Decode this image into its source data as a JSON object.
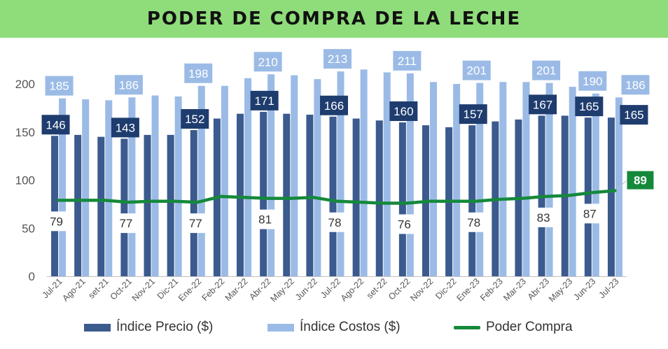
{
  "title": "PODER DE COMPRA DE LA LECHE",
  "colors": {
    "title_bg": "#8fdc7a",
    "precio": "#3b5a8e",
    "costos": "#9bbbe6",
    "poder": "#15893b",
    "precio_label_bg": "#1f3c6e",
    "costos_label_bg": "#9bbbe6"
  },
  "legend": {
    "precio": "Índice Precio ($)",
    "costos": "Índice Costos ($)",
    "poder": "Poder Compra"
  },
  "chart_data": {
    "type": "bar",
    "categories": [
      "Jul-21",
      "Ago-21",
      "set-21",
      "Oct-21",
      "Nov-21",
      "Dic-21",
      "Ene-22",
      "Feb-22",
      "Mar-22",
      "Abr-22",
      "May-22",
      "Jun-22",
      "Jul-22",
      "Ago-22",
      "set-22",
      "Oct-22",
      "Nov-22",
      "Dic-22",
      "Ene-23",
      "Feb-23",
      "Mar-23",
      "Abr-23",
      "May-23",
      "Jun-23",
      "Jul-23"
    ],
    "series": [
      {
        "name": "Índice Precio ($)",
        "type": "bar",
        "values": [
          146,
          147,
          145,
          143,
          147,
          147,
          152,
          164,
          169,
          171,
          169,
          168,
          166,
          164,
          162,
          160,
          157,
          155,
          157,
          161,
          163,
          167,
          167,
          165,
          165
        ]
      },
      {
        "name": "Índice Costos ($)",
        "type": "bar",
        "values": [
          185,
          184,
          183,
          186,
          188,
          187,
          198,
          198,
          206,
          210,
          209,
          205,
          213,
          215,
          212,
          211,
          202,
          200,
          201,
          202,
          202,
          201,
          197,
          190,
          186
        ]
      },
      {
        "name": "Poder Compra",
        "type": "line",
        "values": [
          79,
          79,
          79,
          77,
          78,
          78,
          77,
          83,
          82,
          81,
          81,
          82,
          78,
          77,
          76,
          76,
          78,
          78,
          78,
          80,
          81,
          83,
          84,
          87,
          89
        ]
      }
    ],
    "data_labels": {
      "precio": {
        "0": 146,
        "3": 143,
        "6": 152,
        "9": 171,
        "12": 166,
        "15": 160,
        "18": 157,
        "21": 167,
        "23": 165,
        "24": 165
      },
      "costos": {
        "0": 185,
        "3": 186,
        "6": 198,
        "9": 210,
        "12": 213,
        "15": 211,
        "18": 201,
        "21": 201,
        "23": 190,
        "24": 186
      },
      "poder": {
        "0": 79,
        "3": 77,
        "6": 77,
        "9": 81,
        "12": 78,
        "15": 76,
        "18": 78,
        "21": 83,
        "23": 87,
        "24": 89
      }
    },
    "y_ticks": [
      "0",
      "50",
      "100",
      "150",
      "200"
    ],
    "ylim": [
      0,
      230
    ],
    "grid": false,
    "legend_position": "bottom"
  }
}
